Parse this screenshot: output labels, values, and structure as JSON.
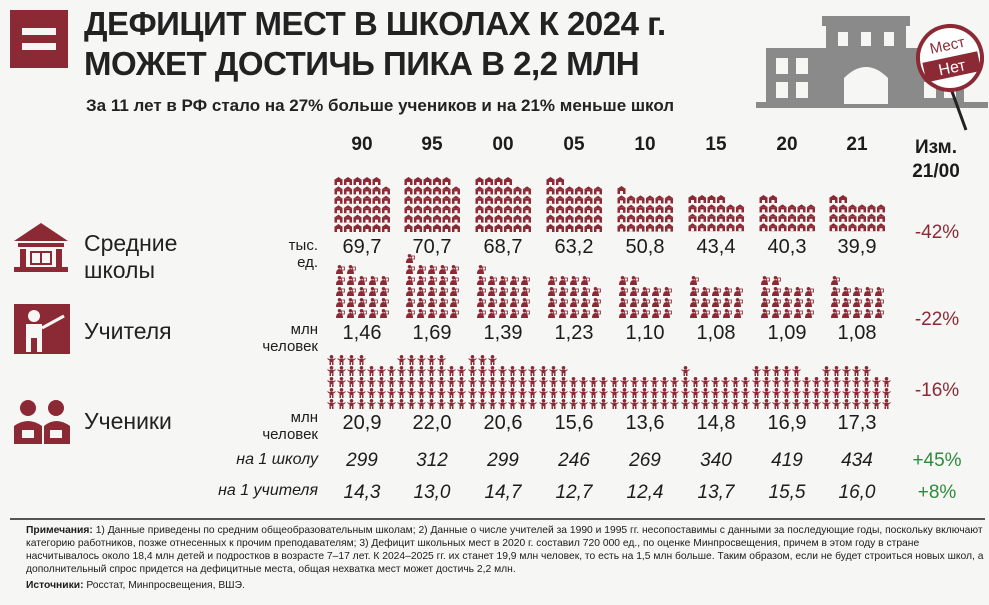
{
  "header": {
    "title_line1": "ДЕФИЦИТ МЕСТ В ШКОЛАХ К 2024 г.",
    "title_line2": "МОЖЕТ ДОСТИЧЬ ПИКА В 2,2 МЛН",
    "subtitle": "За 11 лет в РФ стало на 27% больше учеников и на 21% меньше школ",
    "sign_top": "Мест",
    "sign_bottom": "Нет"
  },
  "colors": {
    "accent": "#8b2a35",
    "positive": "#2e8b3a",
    "building": "#8a8a8a"
  },
  "chart_data": {
    "type": "table",
    "years": [
      "90",
      "95",
      "00",
      "05",
      "10",
      "15",
      "20",
      "21"
    ],
    "change_header": [
      "Изм.",
      "21/00"
    ],
    "rows": [
      {
        "label": [
          "Средние",
          "школы"
        ],
        "unit": [
          "тыс.",
          "ед."
        ],
        "icon": "school-icon",
        "values": [
          "69,7",
          "70,7",
          "68,7",
          "63,2",
          "50,8",
          "43,4",
          "40,3",
          "39,9"
        ],
        "numeric": [
          69.7,
          70.7,
          68.7,
          63.2,
          50.8,
          43.4,
          40.3,
          39.9
        ],
        "change": "-42%"
      },
      {
        "label": [
          "Учителя"
        ],
        "unit": [
          "млн",
          "человек"
        ],
        "icon": "teacher-icon",
        "values": [
          "1,46",
          "1,69",
          "1,39",
          "1,23",
          "1,10",
          "1,08",
          "1,09",
          "1,08"
        ],
        "numeric": [
          1.46,
          1.69,
          1.39,
          1.23,
          1.1,
          1.08,
          1.09,
          1.08
        ],
        "change": "-22%"
      },
      {
        "label": [
          "Ученики"
        ],
        "unit": [
          "млн",
          "человек"
        ],
        "icon": "students-icon",
        "values": [
          "20,9",
          "22,0",
          "20,6",
          "15,6",
          "13,6",
          "14,8",
          "16,9",
          "17,3"
        ],
        "numeric": [
          20.9,
          22.0,
          20.6,
          15.6,
          13.6,
          14.8,
          16.9,
          17.3
        ],
        "change": "-16%"
      }
    ],
    "ratios": [
      {
        "label": "на 1 школу",
        "values": [
          "299",
          "312",
          "299",
          "246",
          "269",
          "340",
          "419",
          "434"
        ],
        "change": "+45%"
      },
      {
        "label": "на 1 учителя",
        "values": [
          "14,3",
          "13,0",
          "14,7",
          "12,7",
          "12,4",
          "13,7",
          "15,5",
          "16,0"
        ],
        "change": "+8%"
      }
    ]
  },
  "notes": {
    "label": "Примечания:",
    "text": "1) Данные приведены по средним общеобразовательным школам; 2) Данные о числе учителей за 1990 и 1995 гг. несопоставимы с данными за последующие годы, поскольку включают категорию работников, позже отнесенных к прочим преподавателям; 3) Дефицит школьных мест в 2020 г. составил 720 000 ед., по оценке Минпросвещения, причем в этом году в стране насчитывалось около 18,4 млн детей и подростков в возрасте 7–17 лет. К 2024–2025 гг. их станет 19,9 млн человек, то есть на 1,5 млн больше. Таким образом, если не будет строиться новых школ, а дополнительный спрос придется на дефицитные места, общая нехватка мест может достичь 2,2 млн.",
    "sources_label": "Источники:",
    "sources_text": "Росстат, Минпросвещения, ВШЭ."
  }
}
